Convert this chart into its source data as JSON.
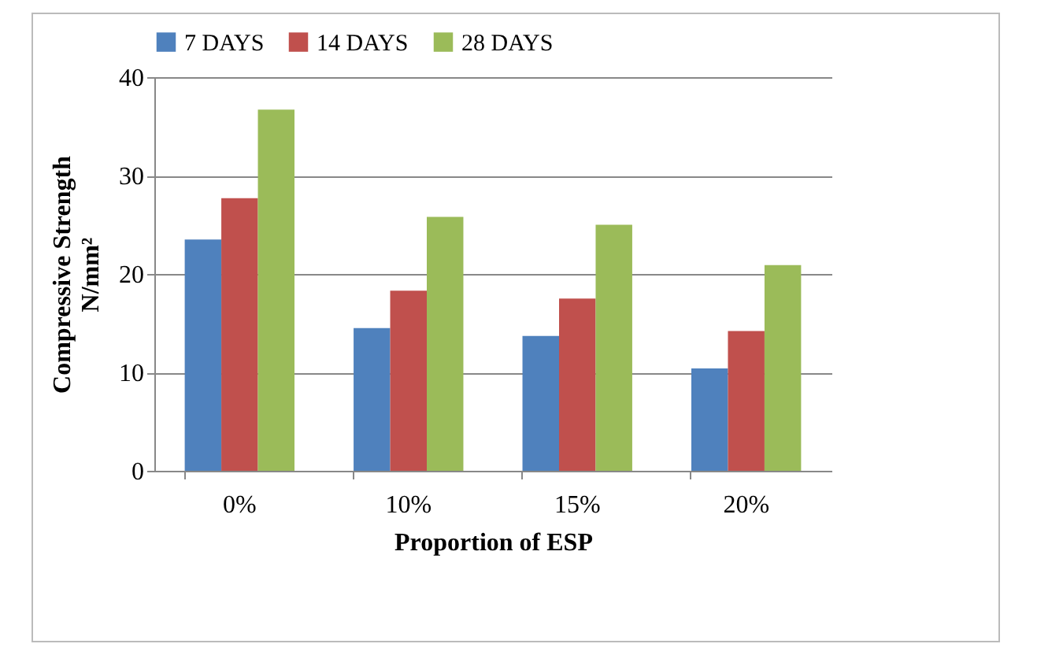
{
  "chart_data": {
    "type": "bar",
    "xlabel": "Proportion of ESP",
    "ylabel": "Compressive Strength N/mm²",
    "categories": [
      "0%",
      "10%",
      "15%",
      "20%"
    ],
    "series": [
      {
        "name": "7 DAYS",
        "color": "#4f81bd",
        "values": [
          23.5,
          14.5,
          13.7,
          10.4
        ]
      },
      {
        "name": "14 DAYS",
        "color": "#c0504d",
        "values": [
          27.7,
          18.3,
          17.5,
          14.2
        ]
      },
      {
        "name": "28 DAYS",
        "color": "#9bbb59",
        "values": [
          36.7,
          25.8,
          25.0,
          20.9
        ]
      }
    ],
    "ylim": [
      0,
      40
    ],
    "yticks": [
      0,
      10,
      20,
      30,
      40
    ],
    "grid": "y",
    "legend": "top"
  }
}
